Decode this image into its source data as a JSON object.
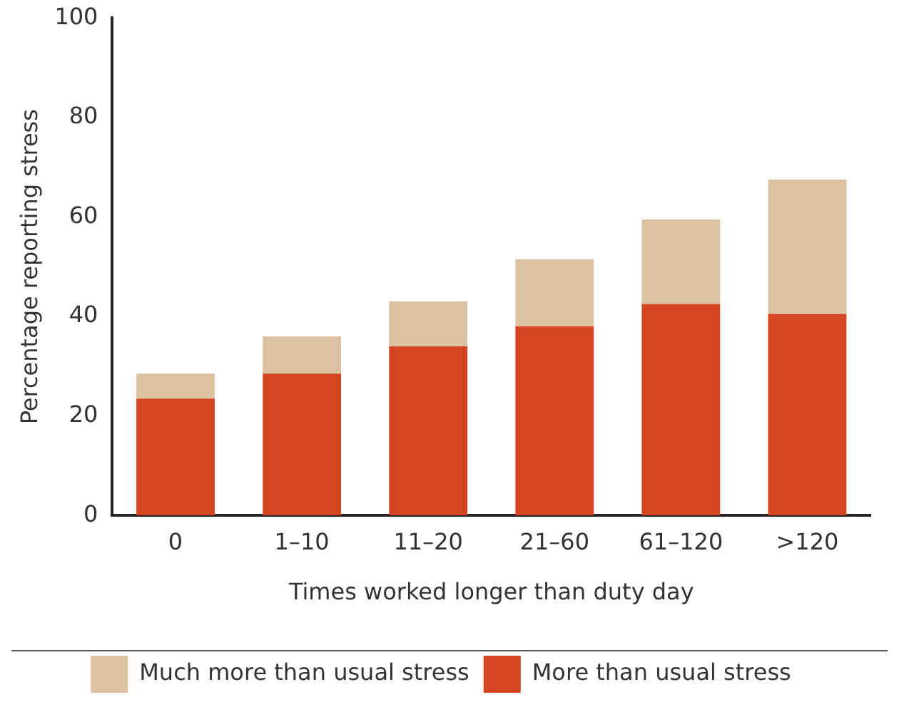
{
  "chart_data": {
    "type": "bar",
    "stacked": true,
    "xlabel": "Times worked longer than duty day",
    "ylabel": "Percentage reporting stress",
    "categories": [
      "0",
      "1–10",
      "11–20",
      "21–60",
      "61–120",
      ">120"
    ],
    "series": [
      {
        "name": "More than usual stress",
        "color": "#d34520",
        "values": [
          23.5,
          28.5,
          34,
          38,
          42.5,
          40.5
        ]
      },
      {
        "name": "Much more than usual stress",
        "color": "#dcc1a0",
        "values": [
          5,
          7.5,
          9,
          13.5,
          17,
          27
        ]
      }
    ],
    "ylim": [
      0,
      100
    ],
    "yticks": [
      0,
      20,
      40,
      60,
      80,
      100
    ],
    "grid": false,
    "legend": "bottom"
  }
}
